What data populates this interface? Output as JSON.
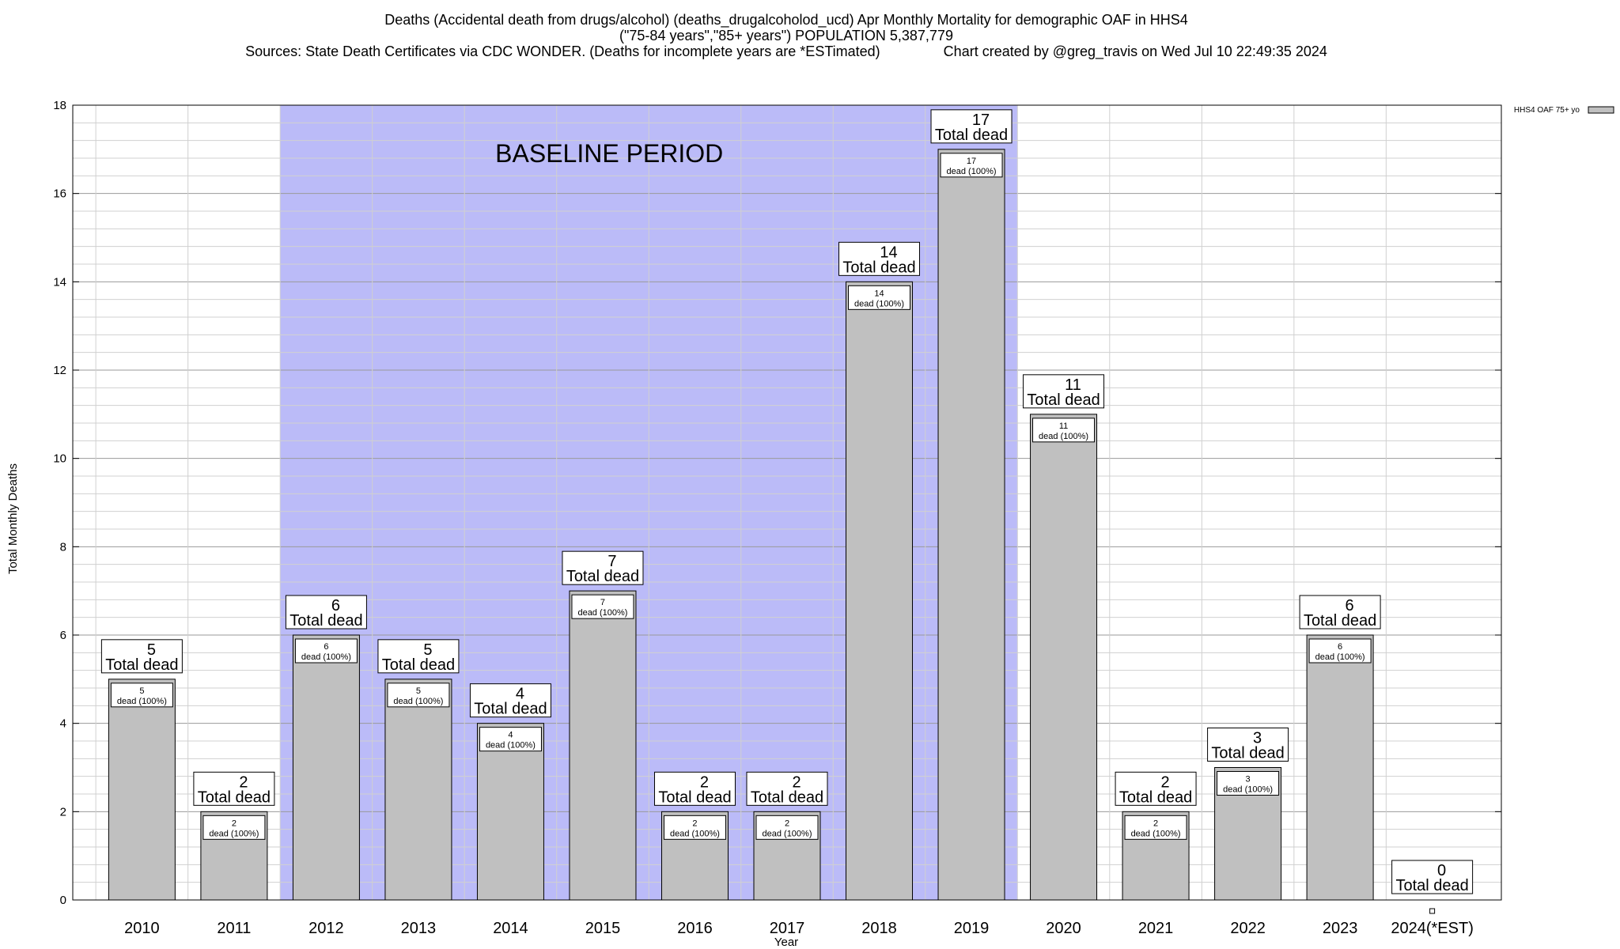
{
  "chart_data": {
    "type": "bar",
    "title_lines": [
      "Deaths (Accidental death from drugs/alcohol) (deaths_drugalcoholod_ucd) Apr Monthly Mortality for demographic OAF in HHS4",
      "(\"75-84 years\",\"85+ years\") POPULATION 5,387,779",
      "Sources: State Death Certificates via CDC WONDER. (Deaths for incomplete years are *ESTimated)                Chart created by @greg_travis on Wed Jul 10 22:49:35 2024"
    ],
    "xlabel": "Year",
    "ylabel": "Total Monthly Deaths",
    "ylim": [
      0,
      18
    ],
    "yticks": [
      0,
      2,
      4,
      6,
      8,
      10,
      12,
      14,
      16,
      18
    ],
    "categories": [
      "2010",
      "2011",
      "2012",
      "2013",
      "2014",
      "2015",
      "2016",
      "2017",
      "2018",
      "2019",
      "2020",
      "2021",
      "2022",
      "2023",
      "2024(*EST)"
    ],
    "values": [
      5,
      2,
      6,
      5,
      4,
      7,
      2,
      2,
      14,
      17,
      11,
      2,
      3,
      6,
      0
    ],
    "inner_labels": [
      "5",
      "2",
      "6",
      "5",
      "4",
      "7",
      "2",
      "2",
      "14",
      "17",
      "11",
      "2",
      "3",
      "6",
      ""
    ],
    "inner_label_suffix": "dead (100%)",
    "total_label_suffix": "Total dead",
    "series": [
      {
        "name": "HHS4 OAF 75+ yo",
        "values": [
          5,
          2,
          6,
          5,
          4,
          7,
          2,
          2,
          14,
          17,
          11,
          2,
          3,
          6,
          0
        ]
      }
    ],
    "legend": {
      "label": "HHS4 OAF 75+ yo",
      "placement": "top-right"
    },
    "annotation": {
      "text": "BASELINE PERIOD",
      "from_category": "2012",
      "to_category": "2019"
    },
    "grid": true,
    "colors": {
      "bar": "#c0c0c0",
      "baseline": "#bbbbf8",
      "grid": "#d0d0d0"
    }
  }
}
